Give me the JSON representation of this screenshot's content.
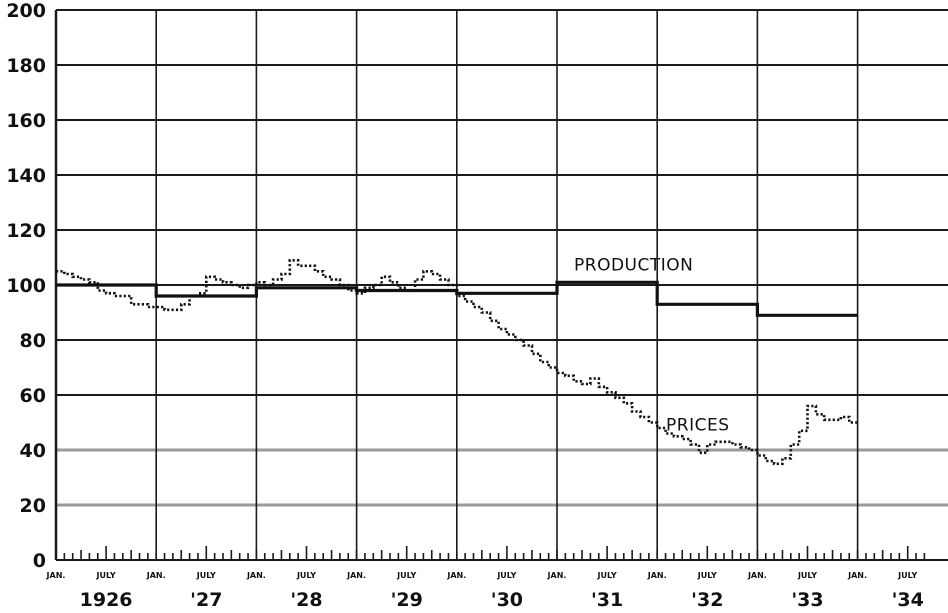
{
  "chart_data": {
    "type": "line",
    "title": "",
    "xlabel": "",
    "ylabel": "",
    "ylim": [
      0,
      200
    ],
    "xlim": [
      "1926-01",
      "1934-09"
    ],
    "yticks": [
      "0",
      "20",
      "40",
      "60",
      "80",
      "100",
      "120",
      "140",
      "160",
      "180",
      "200"
    ],
    "month_labels": [
      "JAN.",
      "JULY"
    ],
    "year_labels": [
      "1926",
      "'27",
      "'28",
      "'29",
      "'30",
      "'31",
      "'32",
      "'33",
      "'34"
    ],
    "grid": true,
    "series": [
      {
        "name": "PRODUCTION",
        "style": "solid",
        "step": "yearly",
        "points": [
          [
            "1926-01",
            100
          ],
          [
            "1927-01",
            96
          ],
          [
            "1928-01",
            99
          ],
          [
            "1929-01",
            98
          ],
          [
            "1930-01",
            97
          ],
          [
            "1931-01",
            101
          ],
          [
            "1932-01",
            93
          ],
          [
            "1933-01",
            89
          ]
        ],
        "end": "1933-12"
      },
      {
        "name": "PRICES",
        "style": "dotted",
        "step": "monthly",
        "points": [
          [
            "1926-01",
            105
          ],
          [
            "1926-02",
            104
          ],
          [
            "1926-03",
            103
          ],
          [
            "1926-04",
            102
          ],
          [
            "1926-05",
            101
          ],
          [
            "1926-06",
            98
          ],
          [
            "1926-07",
            97
          ],
          [
            "1926-08",
            96
          ],
          [
            "1926-09",
            96
          ],
          [
            "1926-10",
            93
          ],
          [
            "1926-11",
            93
          ],
          [
            "1926-12",
            92
          ],
          [
            "1927-01",
            92
          ],
          [
            "1927-02",
            91
          ],
          [
            "1927-03",
            91
          ],
          [
            "1927-04",
            93
          ],
          [
            "1927-05",
            96
          ],
          [
            "1927-06",
            97
          ],
          [
            "1927-07",
            103
          ],
          [
            "1927-08",
            102
          ],
          [
            "1927-09",
            101
          ],
          [
            "1927-10",
            100
          ],
          [
            "1927-11",
            99
          ],
          [
            "1927-12",
            100
          ],
          [
            "1928-01",
            101
          ],
          [
            "1928-02",
            100
          ],
          [
            "1928-03",
            102
          ],
          [
            "1928-04",
            104
          ],
          [
            "1928-05",
            109
          ],
          [
            "1928-06",
            107
          ],
          [
            "1928-07",
            107
          ],
          [
            "1928-08",
            105
          ],
          [
            "1928-09",
            103
          ],
          [
            "1928-10",
            102
          ],
          [
            "1928-11",
            100
          ],
          [
            "1928-12",
            98
          ],
          [
            "1929-01",
            97
          ],
          [
            "1929-02",
            99
          ],
          [
            "1929-03",
            100
          ],
          [
            "1929-04",
            103
          ],
          [
            "1929-05",
            101
          ],
          [
            "1929-06",
            99
          ],
          [
            "1929-07",
            98
          ],
          [
            "1929-08",
            102
          ],
          [
            "1929-09",
            105
          ],
          [
            "1929-10",
            104
          ],
          [
            "1929-11",
            102
          ],
          [
            "1929-12",
            100
          ],
          [
            "1930-01",
            96
          ],
          [
            "1930-02",
            94
          ],
          [
            "1930-03",
            92
          ],
          [
            "1930-04",
            90
          ],
          [
            "1930-05",
            87
          ],
          [
            "1930-06",
            84
          ],
          [
            "1930-07",
            82
          ],
          [
            "1930-08",
            80
          ],
          [
            "1930-09",
            78
          ],
          [
            "1930-10",
            75
          ],
          [
            "1930-11",
            72
          ],
          [
            "1930-12",
            70
          ],
          [
            "1931-01",
            68
          ],
          [
            "1931-02",
            67
          ],
          [
            "1931-03",
            65
          ],
          [
            "1931-04",
            64
          ],
          [
            "1931-05",
            66
          ],
          [
            "1931-06",
            63
          ],
          [
            "1931-07",
            61
          ],
          [
            "1931-08",
            59
          ],
          [
            "1931-09",
            57
          ],
          [
            "1931-10",
            54
          ],
          [
            "1931-11",
            52
          ],
          [
            "1931-12",
            50
          ],
          [
            "1932-01",
            48
          ],
          [
            "1932-02",
            46
          ],
          [
            "1932-03",
            45
          ],
          [
            "1932-04",
            44
          ],
          [
            "1932-05",
            42
          ],
          [
            "1932-06",
            39
          ],
          [
            "1932-07",
            42
          ],
          [
            "1932-08",
            43
          ],
          [
            "1932-09",
            43
          ],
          [
            "1932-10",
            42
          ],
          [
            "1932-11",
            41
          ],
          [
            "1932-12",
            40
          ],
          [
            "1933-01",
            38
          ],
          [
            "1933-02",
            36
          ],
          [
            "1933-03",
            35
          ],
          [
            "1933-04",
            37
          ],
          [
            "1933-05",
            42
          ],
          [
            "1933-06",
            47
          ],
          [
            "1933-07",
            56
          ],
          [
            "1933-08",
            53
          ],
          [
            "1933-09",
            51
          ],
          [
            "1933-10",
            51
          ],
          [
            "1933-11",
            52
          ],
          [
            "1933-12",
            50
          ]
        ],
        "end": "1933-12"
      }
    ]
  }
}
